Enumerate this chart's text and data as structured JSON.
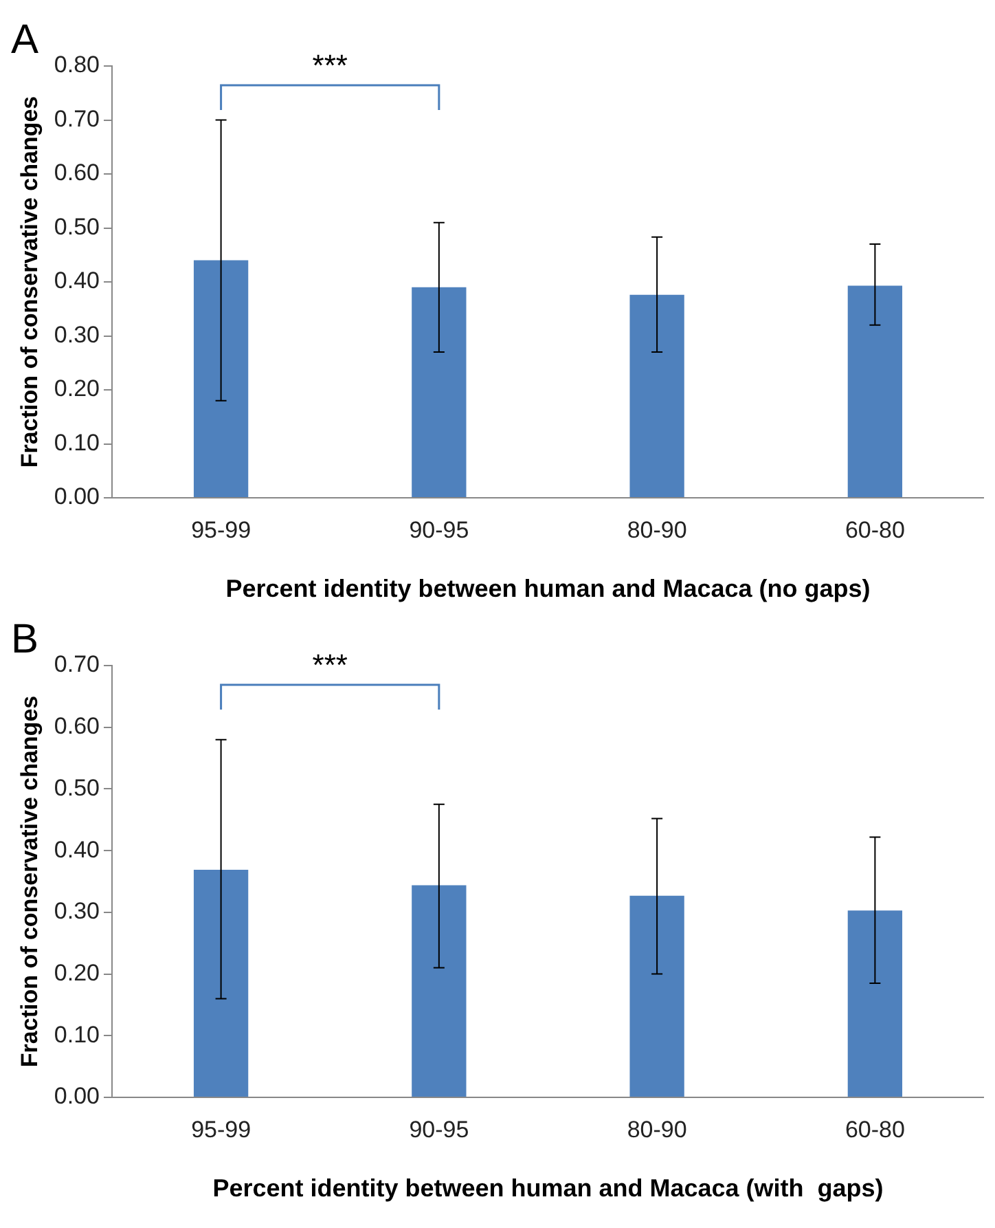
{
  "chart_data": [
    {
      "type": "bar",
      "title": "A",
      "xlabel": "Percent identity between human and Macaca (no gaps)",
      "ylabel": "Fraction of conservative changes",
      "categories": [
        "95-99",
        "90-95",
        "80-90",
        "60-80"
      ],
      "series": [
        {
          "color": "#4f81bd",
          "values": [
            0.44,
            0.39,
            0.376,
            0.393
          ],
          "errors": [
            [
              0.18,
              0.7
            ],
            [
              0.27,
              0.51
            ],
            [
              0.27,
              0.483
            ],
            [
              0.32,
              0.47
            ]
          ]
        }
      ],
      "ylim": [
        0,
        0.8
      ],
      "yticks": [
        {
          "value": 0,
          "label": "0.00"
        },
        {
          "value": 0.1,
          "label": "0.10"
        },
        {
          "value": 0.2,
          "label": "0.20"
        },
        {
          "value": 0.3,
          "label": "0.30"
        },
        {
          "value": 0.4,
          "label": "0.40"
        },
        {
          "value": 0.5,
          "label": "0.50"
        },
        {
          "value": 0.6,
          "label": "0.60"
        },
        {
          "value": 0.7,
          "label": "0.70"
        },
        {
          "value": 0.8,
          "label": "0.80"
        }
      ],
      "annotations": [
        "***"
      ],
      "grid": false,
      "legend": false
    },
    {
      "type": "bar",
      "title": "B",
      "xlabel": "Percent identity between human and Macaca (with  gaps)",
      "ylabel": "Fraction of conservative changes",
      "categories": [
        "95-99",
        "90-95",
        "80-90",
        "60-80"
      ],
      "series": [
        {
          "color": "#4f81bd",
          "values": [
            0.369,
            0.344,
            0.327,
            0.303
          ],
          "errors": [
            [
              0.16,
              0.58
            ],
            [
              0.21,
              0.475
            ],
            [
              0.2,
              0.452
            ],
            [
              0.185,
              0.422
            ]
          ]
        }
      ],
      "ylim": [
        0,
        0.7
      ],
      "yticks": [
        {
          "value": 0,
          "label": "0.00"
        },
        {
          "value": 0.1,
          "label": "0.10"
        },
        {
          "value": 0.2,
          "label": "0.20"
        },
        {
          "value": 0.3,
          "label": "0.30"
        },
        {
          "value": 0.4,
          "label": "0.40"
        },
        {
          "value": 0.5,
          "label": "0.50"
        },
        {
          "value": 0.6,
          "label": "0.60"
        },
        {
          "value": 0.7,
          "label": "0.70"
        }
      ],
      "annotations": [
        "***"
      ],
      "grid": false,
      "legend": false
    }
  ]
}
